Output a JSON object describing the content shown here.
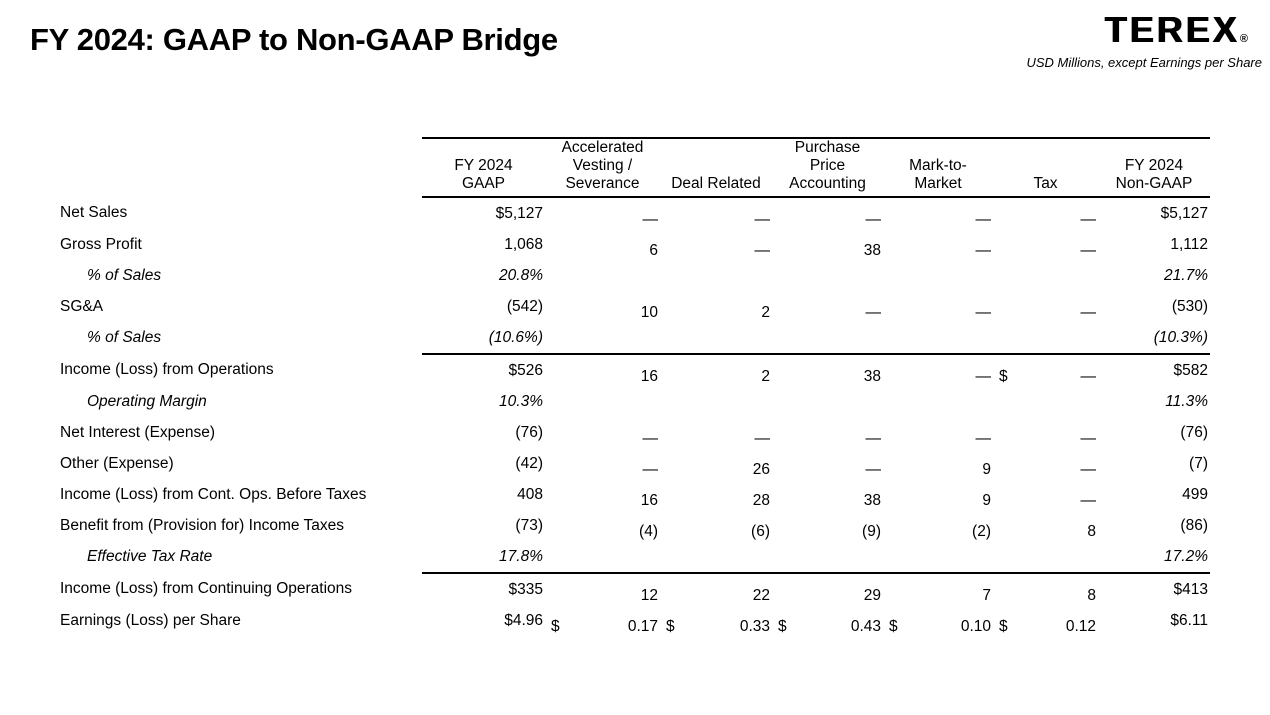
{
  "page": {
    "title": "FY 2024: GAAP to Non-GAAP Bridge",
    "brand": {
      "logo_text": "TEREX",
      "registered_mark": "®",
      "subtitle": "USD Millions, except Earnings per Share"
    }
  },
  "colors": {
    "text": "#000000",
    "background": "#ffffff",
    "rule": "#000000"
  },
  "table": {
    "columns": [
      {
        "label": "FY 2024\nGAAP"
      },
      {
        "label": "Accelerated\nVesting /\nSeverance"
      },
      {
        "label": "Deal Related"
      },
      {
        "label": "Purchase\nPrice\nAccounting"
      },
      {
        "label": "Mark-to-\nMarket"
      },
      {
        "label": "Tax"
      },
      {
        "label": "FY 2024\nNon-GAAP"
      }
    ],
    "rows": [
      {
        "label": "Net Sales",
        "style": "normal",
        "cells": [
          "$5,127",
          "—",
          "—",
          "—",
          "—",
          "—",
          "$5,127"
        ]
      },
      {
        "label": "Gross Profit",
        "style": "normal",
        "cells": [
          "1,068",
          "6",
          "—",
          "38",
          "—",
          "—",
          "1,112"
        ]
      },
      {
        "label": "% of Sales",
        "style": "italic",
        "cells": [
          "20.8%",
          "",
          "",
          "",
          "",
          "",
          "21.7%"
        ]
      },
      {
        "label": "SG&A",
        "style": "normal",
        "cells": [
          "(542)",
          "10",
          "2",
          "—",
          "—",
          "—",
          "(530)"
        ]
      },
      {
        "label": "% of Sales",
        "style": "italic",
        "cells": [
          "(10.6%)",
          "",
          "",
          "",
          "",
          "",
          "(10.3%)"
        ]
      },
      {
        "label": "Income (Loss) from Operations",
        "style": "normal",
        "rule_above": true,
        "cells": [
          "$526",
          "16",
          "2",
          "38",
          "—",
          {
            "prefix": "$",
            "value": "—"
          },
          "$582"
        ]
      },
      {
        "label": "Operating Margin",
        "style": "italic",
        "cells": [
          "10.3%",
          "",
          "",
          "",
          "",
          "",
          "11.3%"
        ]
      },
      {
        "label": "Net Interest (Expense)",
        "style": "normal",
        "cells": [
          "(76)",
          "—",
          "—",
          "—",
          "—",
          "—",
          "(76)"
        ]
      },
      {
        "label": "Other (Expense)",
        "style": "normal",
        "cells": [
          "(42)",
          "—",
          "26",
          "—",
          "9",
          "—",
          "(7)"
        ]
      },
      {
        "label": "Income (Loss) from Cont. Ops. Before Taxes",
        "style": "normal",
        "cells": [
          "408",
          "16",
          "28",
          "38",
          "9",
          "—",
          "499"
        ]
      },
      {
        "label": "Benefit from (Provision for) Income Taxes",
        "style": "normal",
        "cells": [
          "(73)",
          "(4)",
          "(6)",
          "(9)",
          "(2)",
          "8",
          "(86)"
        ]
      },
      {
        "label": "Effective Tax Rate",
        "style": "italic",
        "cells": [
          "17.8%",
          "",
          "",
          "",
          "",
          "",
          "17.2%"
        ]
      },
      {
        "label": "Income (Loss) from Continuing Operations",
        "style": "normal",
        "rule_above": true,
        "cells": [
          "$335",
          "12",
          "22",
          "29",
          "7",
          "8",
          "$413"
        ]
      },
      {
        "label": "Earnings (Loss) per Share",
        "style": "normal",
        "cells": [
          "$4.96",
          {
            "prefix": "$",
            "value": "0.17"
          },
          {
            "prefix": "$",
            "value": "0.33"
          },
          {
            "prefix": "$",
            "value": "0.43"
          },
          {
            "prefix": "$",
            "value": "0.10"
          },
          {
            "prefix": "$",
            "value": "0.12"
          },
          "$6.11"
        ]
      }
    ]
  }
}
